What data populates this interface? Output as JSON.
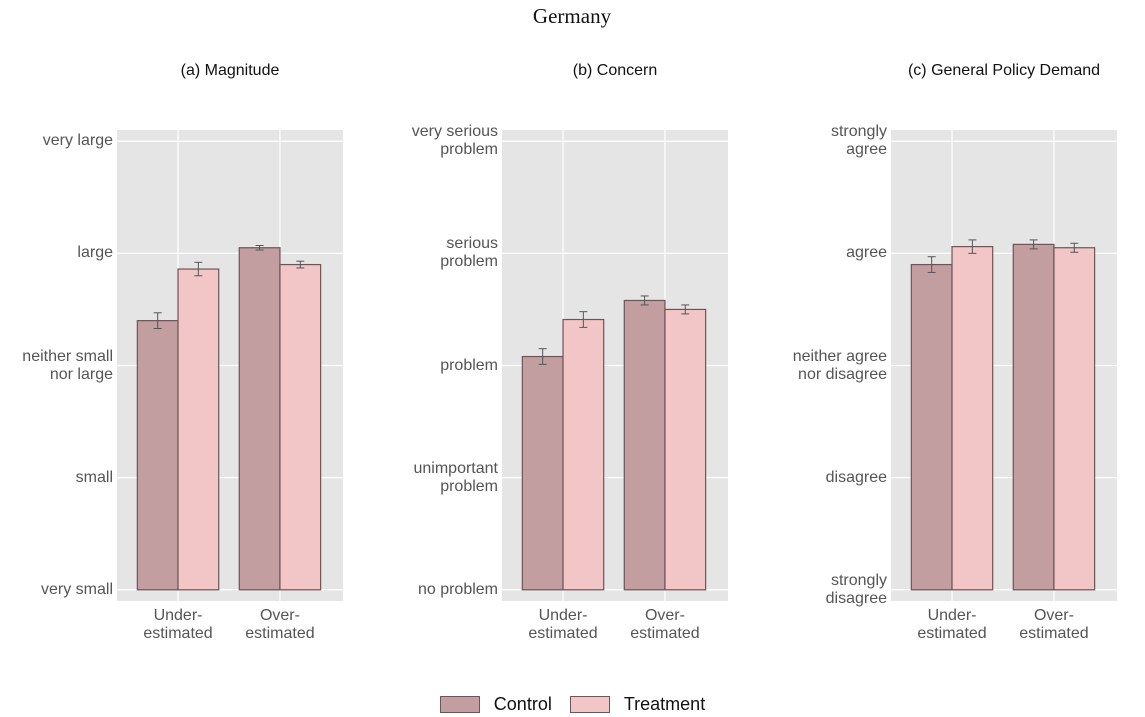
{
  "title": "Germany",
  "legend_position": "bottom",
  "chart_data": [
    {
      "type": "bar",
      "title": "(a) Magnitude",
      "categories": [
        "Under-\nestimated",
        "Over-\nestimated"
      ],
      "series": [
        {
          "name": "Control",
          "color": "#c29ea0",
          "values": [
            3.4,
            4.05
          ],
          "errors": [
            0.07,
            0.02
          ]
        },
        {
          "name": "Treatment",
          "color": "#f2c6c6",
          "values": [
            3.86,
            3.9
          ],
          "errors": [
            0.06,
            0.03
          ]
        }
      ],
      "ylim": [
        0.9,
        5.1
      ],
      "yticks": [
        {
          "value": 1,
          "label": "very small"
        },
        {
          "value": 2,
          "label": "small"
        },
        {
          "value": 3,
          "label": "neither small\nnor large"
        },
        {
          "value": 4,
          "label": "large"
        },
        {
          "value": 5,
          "label": "very large"
        }
      ],
      "grid": true
    },
    {
      "type": "bar",
      "title": "(b) Concern",
      "categories": [
        "Under-\nestimated",
        "Over-\nestimated"
      ],
      "series": [
        {
          "color": "#c29ea0",
          "values": [
            3.08,
            3.58
          ],
          "errors": [
            0.07,
            0.04
          ]
        },
        {
          "color": "#f2c6c6",
          "values": [
            3.41,
            3.5
          ],
          "errors": [
            0.07,
            0.04
          ]
        }
      ],
      "ylim": [
        0.9,
        5.1
      ],
      "yticks": [
        {
          "value": 1,
          "label": "no problem"
        },
        {
          "value": 2,
          "label": "unimportant\nproblem"
        },
        {
          "value": 3,
          "label": "problem"
        },
        {
          "value": 4,
          "label": "serious\nproblem"
        },
        {
          "value": 5,
          "label": "very serious\nproblem"
        }
      ],
      "grid": true
    },
    {
      "type": "bar",
      "title": "(c) General Policy Demand",
      "categories": [
        "Under-\nestimated",
        "Over-\nestimated"
      ],
      "series": [
        {
          "color": "#c29ea0",
          "values": [
            3.9,
            4.08
          ],
          "errors": [
            0.07,
            0.04
          ]
        },
        {
          "color": "#f2c6c6",
          "values": [
            4.06,
            4.05
          ],
          "errors": [
            0.06,
            0.04
          ]
        }
      ],
      "ylim": [
        0.9,
        5.1
      ],
      "yticks": [
        {
          "value": 1,
          "label": "strongly\ndisagree"
        },
        {
          "value": 2,
          "label": "disagree"
        },
        {
          "value": 3,
          "label": "neither agree\nnor disagree"
        },
        {
          "value": 4,
          "label": "agree"
        },
        {
          "value": 5,
          "label": "strongly\nagree"
        }
      ],
      "grid": true
    }
  ]
}
